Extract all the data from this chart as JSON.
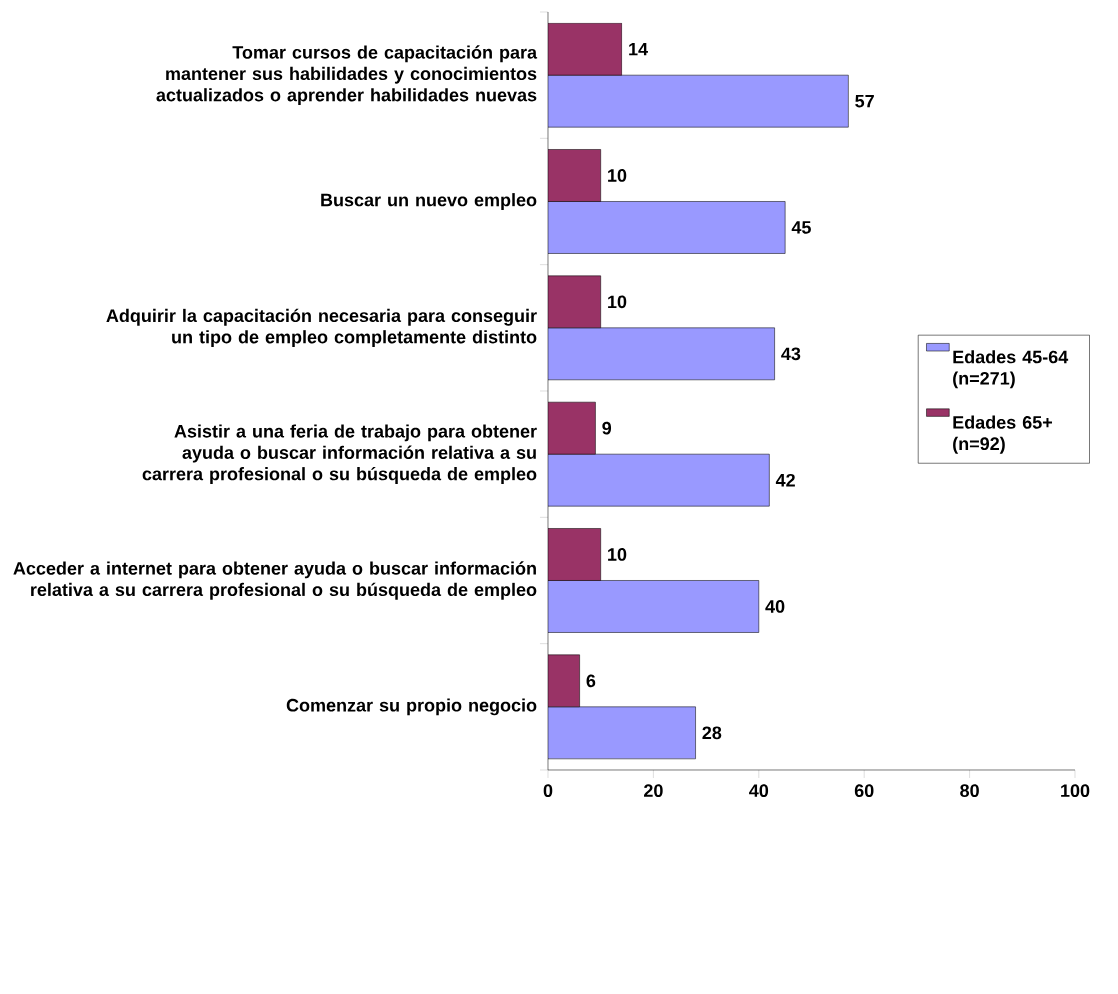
{
  "chart_data": {
    "type": "bar",
    "orientation": "horizontal",
    "categories": [
      "Tomar cursos de capacitación para mantener sus habilidades y conocimientos actualizados o aprender habilidades nuevas",
      "Buscar un nuevo empleo",
      "Adquirir la capacitación necesaria para conseguir un tipo de empleo completamente distinto",
      "Asistir a una feria de trabajo para obtener ayuda o buscar información relativa a su carrera profesional o su búsqueda de empleo",
      "Acceder a internet para obtener ayuda o buscar información relativa a su carrera profesional o su búsqueda de empleo",
      "Comenzar su propio negocio"
    ],
    "series": [
      {
        "name": "Edades 45-64 (n=271)",
        "color": "#9999ff",
        "values": [
          57,
          45,
          43,
          42,
          40,
          28
        ]
      },
      {
        "name": "Edades 65+ (n=92)",
        "color": "#993366",
        "values": [
          14,
          10,
          10,
          9,
          10,
          6
        ]
      }
    ],
    "xlim": [
      0,
      100
    ],
    "xticks": [
      0,
      20,
      40,
      60,
      80,
      100
    ],
    "data_labels": true,
    "legend": "right",
    "grid": false
  }
}
